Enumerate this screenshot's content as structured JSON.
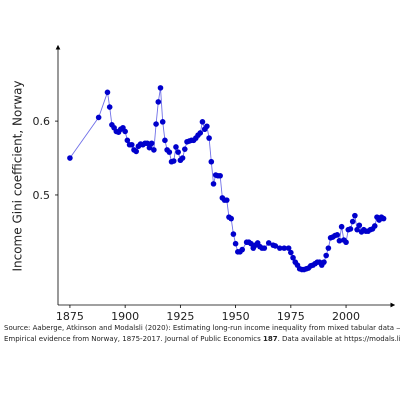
{
  "chart_data": {
    "type": "line",
    "ylabel": "Income Gini coefficient, Norway",
    "source": {
      "line1": "Source: Aaberge, Atkinson and Modalsli (2020): Estimating long-run income inequality from mixed tabular data —",
      "line2_before": "Empirical evidence from Norway, 1875-2017. Journal of Public Economics ",
      "volume": "187",
      "line2_after": ". Data available at https://modals.li"
    },
    "series": [
      {
        "name": "Norway",
        "color": "#0000cc",
        "line_color": "#7070e8",
        "x": [
          1875,
          1888,
          1892,
          1893,
          1894,
          1895,
          1896,
          1897,
          1898,
          1899,
          1900,
          1901,
          1902,
          1903,
          1904,
          1905,
          1906,
          1907,
          1908,
          1909,
          1910,
          1911,
          1912,
          1913,
          1914,
          1915,
          1916,
          1917,
          1918,
          1919,
          1920,
          1921,
          1922,
          1923,
          1924,
          1925,
          1926,
          1927,
          1928,
          1929,
          1930,
          1931,
          1932,
          1933,
          1934,
          1935,
          1936,
          1937,
          1938,
          1939,
          1940,
          1941,
          1942,
          1943,
          1944,
          1945,
          1946,
          1947,
          1948,
          1949,
          1950,
          1951,
          1952,
          1953,
          1955,
          1956,
          1957,
          1958,
          1959,
          1960,
          1961,
          1962,
          1963,
          1965,
          1967,
          1968,
          1970,
          1972,
          1974,
          1975,
          1976,
          1977,
          1978,
          1979,
          1980,
          1981,
          1982,
          1983,
          1984,
          1985,
          1986,
          1987,
          1988,
          1989,
          1990,
          1991,
          1992,
          1993,
          1994,
          1995,
          1996,
          1997,
          1998,
          1999,
          2000,
          2001,
          2002,
          2003,
          2004,
          2005,
          2006,
          2007,
          2008,
          2009,
          2010,
          2011,
          2012,
          2013,
          2014,
          2015,
          2016,
          2017
        ],
        "values": [
          0.55,
          0.605,
          0.639,
          0.619,
          0.595,
          0.591,
          0.586,
          0.585,
          0.589,
          0.591,
          0.586,
          0.574,
          0.568,
          0.568,
          0.561,
          0.559,
          0.566,
          0.569,
          0.568,
          0.57,
          0.57,
          0.564,
          0.57,
          0.561,
          0.596,
          0.626,
          0.645,
          0.599,
          0.574,
          0.561,
          0.558,
          0.545,
          0.546,
          0.565,
          0.558,
          0.547,
          0.55,
          0.562,
          0.572,
          0.573,
          0.574,
          0.574,
          0.577,
          0.581,
          0.584,
          0.599,
          0.589,
          0.593,
          0.577,
          0.545,
          0.515,
          0.527,
          0.526,
          0.526,
          0.496,
          0.493,
          0.493,
          0.47,
          0.468,
          0.447,
          0.434,
          0.423,
          0.423,
          0.426,
          0.436,
          0.436,
          0.434,
          0.428,
          0.432,
          0.435,
          0.43,
          0.428,
          0.428,
          0.435,
          0.432,
          0.431,
          0.428,
          0.428,
          0.428,
          0.422,
          0.415,
          0.409,
          0.405,
          0.4,
          0.399,
          0.399,
          0.4,
          0.401,
          0.404,
          0.405,
          0.407,
          0.409,
          0.409,
          0.405,
          0.409,
          0.418,
          0.428,
          0.442,
          0.443,
          0.445,
          0.446,
          0.438,
          0.457,
          0.439,
          0.436,
          0.453,
          0.454,
          0.464,
          0.472,
          0.453,
          0.459,
          0.45,
          0.453,
          0.451,
          0.451,
          0.453,
          0.454,
          0.458,
          0.47,
          0.466,
          0.47,
          0.468
        ]
      }
    ],
    "xlim": [
      1869.6,
      2020.8
    ],
    "xticks": [
      1875,
      1900,
      1925,
      1950,
      1975,
      2000
    ],
    "ylim": [
      0.351,
      0.699
    ],
    "yticks": [
      0.5,
      0.6
    ]
  }
}
